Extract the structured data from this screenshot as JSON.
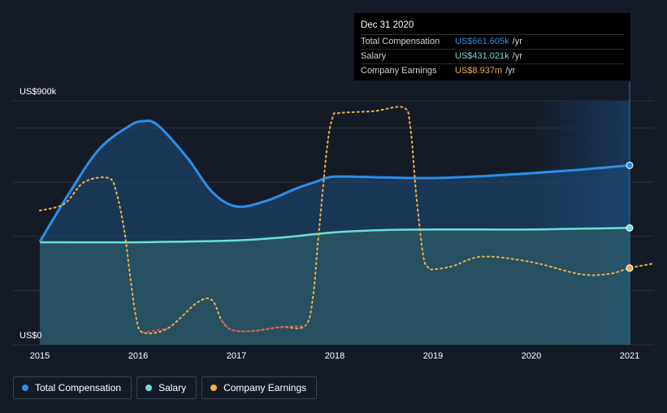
{
  "chart_data": {
    "type": "line",
    "y_axis": {
      "top_label": "US$900k",
      "bottom_label": "US$0",
      "ylim": [
        0,
        900
      ]
    },
    "x_ticks": [
      "2015",
      "2016",
      "2017",
      "2018",
      "2019",
      "2020",
      "2021"
    ],
    "series": [
      {
        "name": "Total Compensation",
        "color": "#2c8ee8",
        "fill": true,
        "x": [
          2015.0,
          2015.3,
          2015.6,
          2015.9,
          2016.05,
          2016.2,
          2016.5,
          2016.75,
          2017.0,
          2017.3,
          2017.6,
          2017.8,
          2018.0,
          2018.5,
          2019.0,
          2019.5,
          2020.0,
          2020.5,
          2021.0
        ],
        "values": [
          380,
          560,
          720,
          805,
          825,
          810,
          690,
          565,
          510,
          530,
          575,
          600,
          620,
          617,
          615,
          622,
          633,
          646,
          662
        ]
      },
      {
        "name": "Salary",
        "color": "#6be0d4",
        "fill": true,
        "x": [
          2015.0,
          2016.0,
          2017.0,
          2017.5,
          2018.0,
          2018.5,
          2019.0,
          2019.5,
          2020.0,
          2020.5,
          2021.0
        ],
        "values": [
          378,
          378,
          385,
          397,
          415,
          423,
          425,
          425,
          425,
          428,
          431
        ]
      },
      {
        "name": "Company Earnings",
        "color": "#f0b048",
        "dashed": true,
        "x": [
          2015.0,
          2015.25,
          2015.45,
          2015.7,
          2015.78,
          2015.86,
          2015.92,
          2015.98,
          2016.05,
          2016.3,
          2016.6,
          2016.75,
          2016.85,
          2016.95,
          2017.15,
          2017.45,
          2017.7,
          2017.78,
          2017.83,
          2017.92,
          2017.98,
          2018.05,
          2018.4,
          2018.7,
          2018.77,
          2018.83,
          2018.9,
          2018.95,
          2019.0,
          2019.2,
          2019.5,
          2020.0,
          2020.5,
          2020.8,
          2021.0,
          2021.25
        ],
        "values": [
          495,
          520,
          600,
          615,
          560,
          420,
          250,
          100,
          45,
          60,
          155,
          165,
          90,
          55,
          50,
          65,
          70,
          180,
          380,
          720,
          840,
          855,
          862,
          875,
          800,
          550,
          330,
          285,
          278,
          290,
          325,
          305,
          260,
          262,
          283,
          300
        ],
        "segment_colors": {
          "negative_dip": "#e05050",
          "default": "#f0b048"
        }
      }
    ],
    "highlight_range": [
      "2020",
      "2021"
    ],
    "tooltip": {
      "date": "Dec 31 2020",
      "rows": [
        {
          "name": "Total Compensation",
          "value": "US$661.605k",
          "unit": "/yr",
          "color": "#2c8ee8"
        },
        {
          "name": "Salary",
          "value": "US$431.021k",
          "unit": "/yr",
          "color": "#6be0d4"
        },
        {
          "name": "Company Earnings",
          "value": "US$8.937m",
          "unit": "/yr",
          "color": "#f0b048"
        }
      ]
    },
    "legend": [
      {
        "label": "Total Compensation",
        "color": "#2c8ee8"
      },
      {
        "label": "Salary",
        "color": "#6be0d4"
      },
      {
        "label": "Company Earnings",
        "color": "#f0b048"
      }
    ]
  }
}
